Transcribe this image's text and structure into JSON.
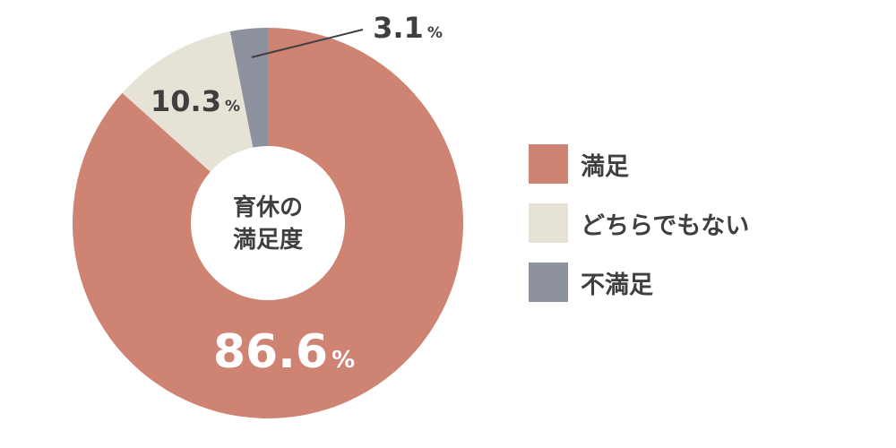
{
  "chart_data": {
    "type": "pie",
    "title": "育休の満足度",
    "title_lines": [
      "育休の",
      "満足度"
    ],
    "donut": true,
    "labels": [
      "満足",
      "どちらでもない",
      "不満足"
    ],
    "values": [
      86.6,
      10.3,
      3.1
    ],
    "value_labels": [
      "86.6",
      "10.3",
      "3.1"
    ],
    "unit": "%",
    "colors": [
      "#cf8373",
      "#e6e2d6",
      "#8e919e"
    ],
    "legend_position": "right"
  }
}
